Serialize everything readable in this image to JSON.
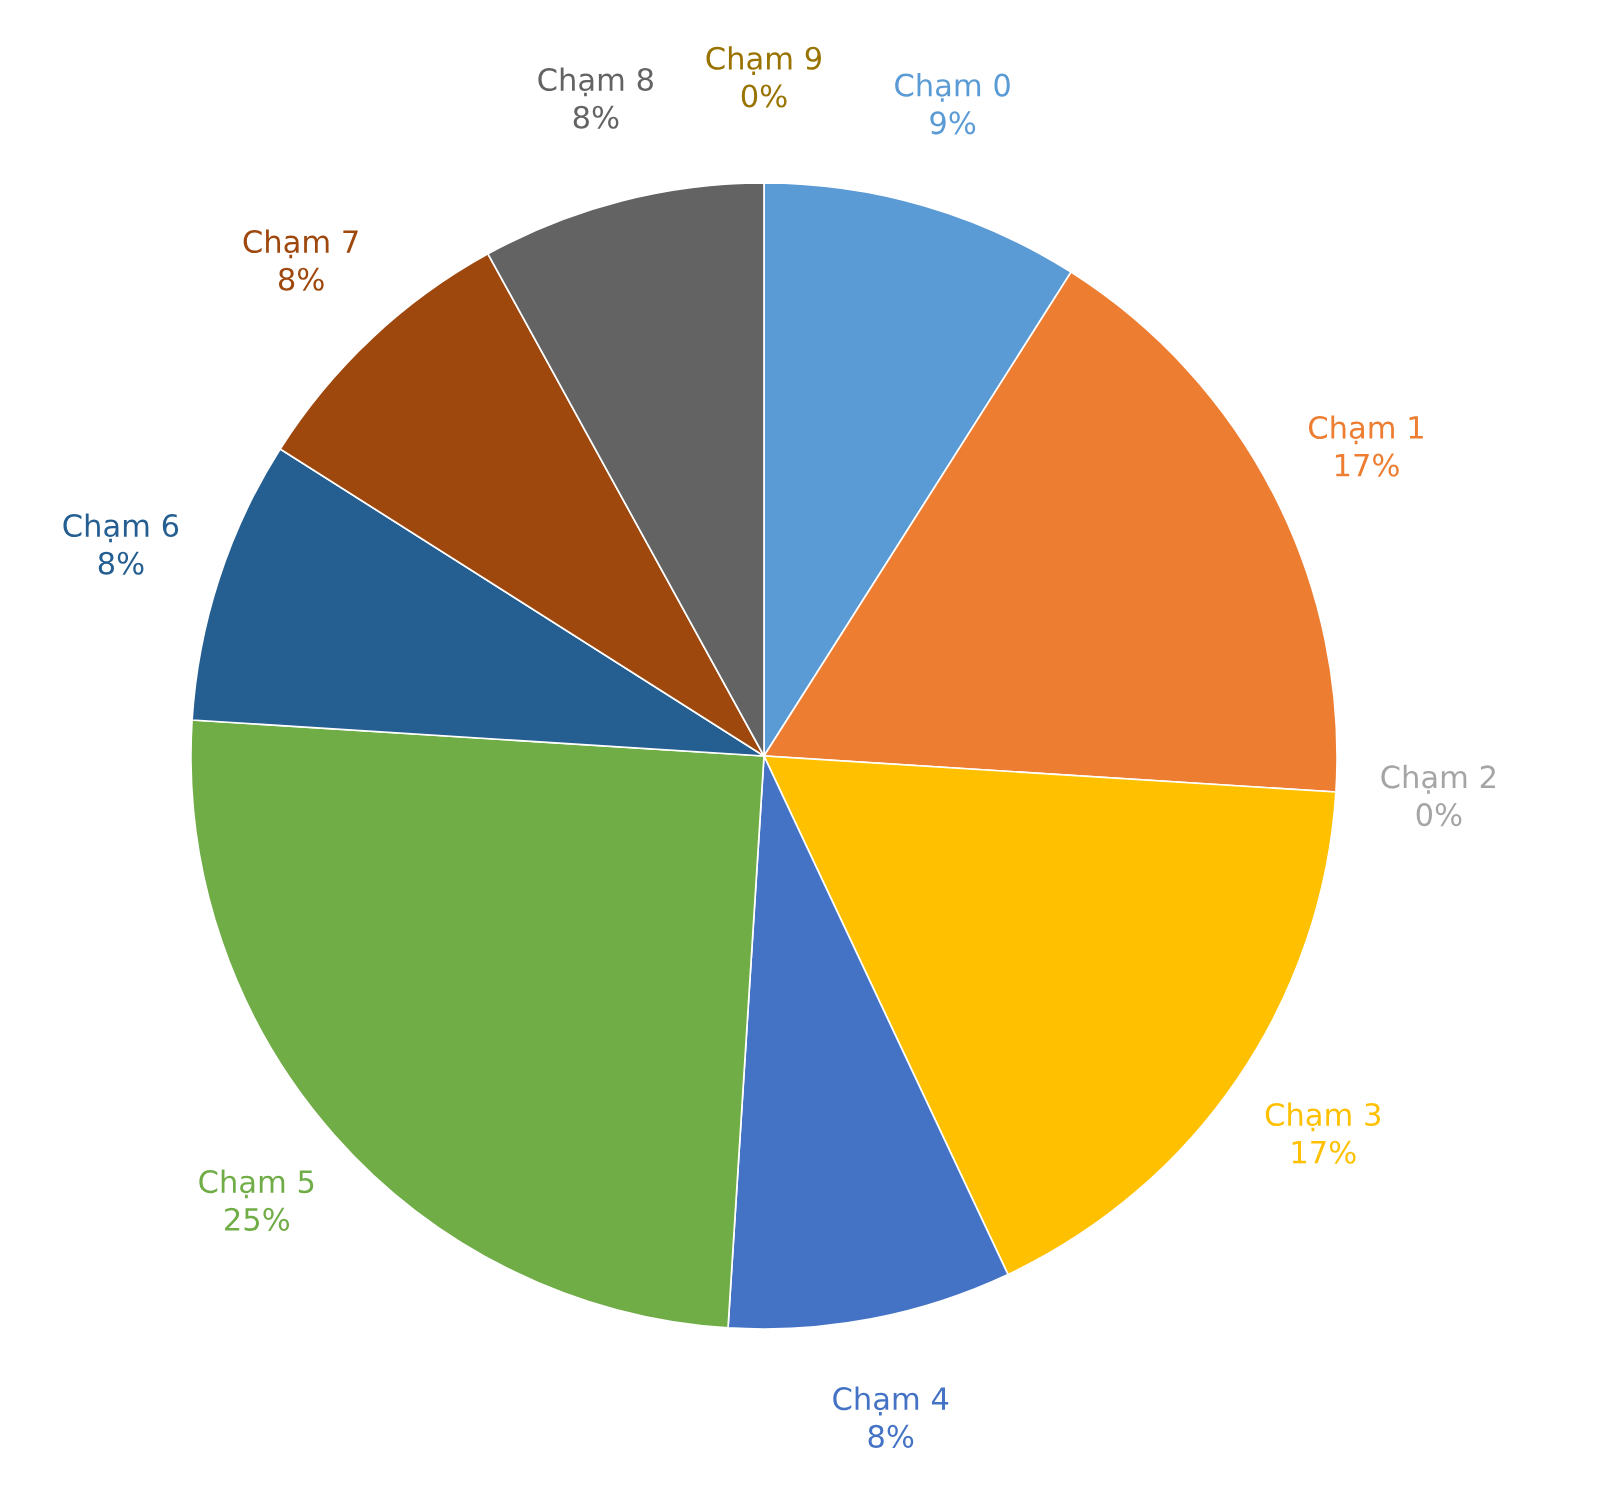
{
  "chart_data": {
    "type": "pie",
    "categories": [
      "Chạm 0",
      "Chạm 1",
      "Chạm 2",
      "Chạm 3",
      "Chạm 4",
      "Chạm 5",
      "Chạm 6",
      "Chạm 7",
      "Chạm 8",
      "Chạm 9"
    ],
    "values": [
      9,
      17,
      0,
      17,
      8,
      25,
      8,
      8,
      8,
      0
    ],
    "value_labels": [
      "9%",
      "17%",
      "0%",
      "17%",
      "8%",
      "25%",
      "8%",
      "8%",
      "8%",
      "0%"
    ],
    "colors": [
      "#5b9bd5",
      "#ed7d31",
      "#a5a5a5",
      "#ffc000",
      "#4472c4",
      "#70ad47",
      "#255e91",
      "#9e480e",
      "#636363",
      "#997300"
    ]
  }
}
